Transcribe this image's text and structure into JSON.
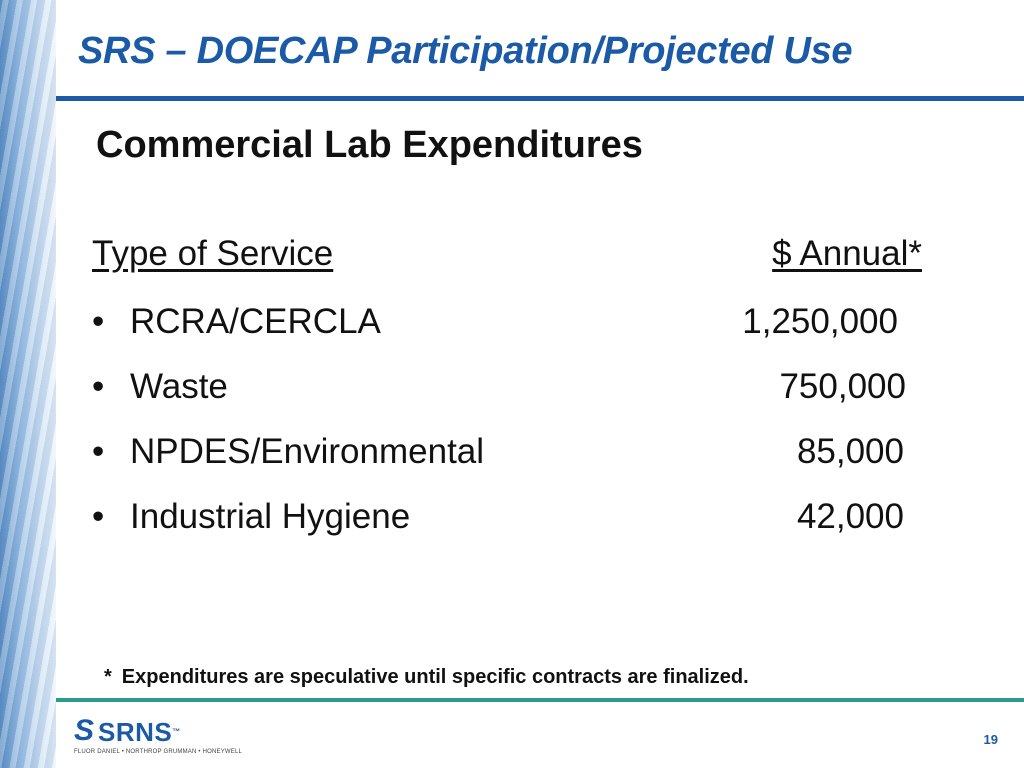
{
  "header": {
    "title": "SRS – DOECAP Participation/Projected Use"
  },
  "slide": {
    "subtitle": "Commercial Lab Expenditures",
    "columns": {
      "service": "Type of Service",
      "annual": "$ Annual*"
    },
    "rows": [
      {
        "bullet": "•",
        "label": "RCRA/CERCLA",
        "amount": "1,250,000"
      },
      {
        "bullet": "•",
        "label": "Waste",
        "amount": "750,000"
      },
      {
        "bullet": "•",
        "label": "NPDES/Environmental",
        "amount": "85,000"
      },
      {
        "bullet": "•",
        "label": "Industrial Hygiene",
        "amount": "42,000"
      }
    ],
    "footnote": {
      "marker": "*",
      "text": "Expenditures are speculative until specific contracts are finalized."
    }
  },
  "footer": {
    "logo": {
      "mark": "S",
      "name": "SRNS",
      "tm": "™",
      "partners": "FLUOR DANIEL • NORTHROP GRUMMAN • HONEYWELL"
    },
    "page_number": "19"
  },
  "colors": {
    "title_blue": "#1b5aa6",
    "teal_rule": "#2a9d8f",
    "text": "#111111"
  }
}
